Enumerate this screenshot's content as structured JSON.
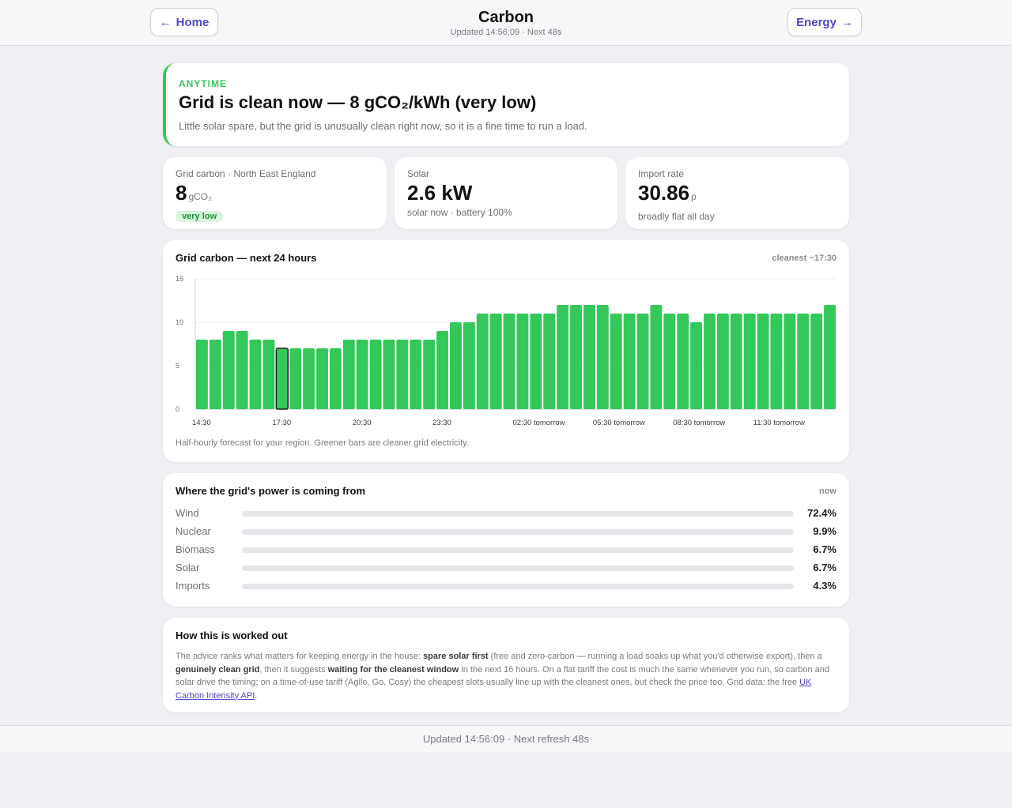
{
  "header": {
    "home_label": "Home",
    "energy_label": "Energy",
    "title": "Carbon",
    "subtitle": "Updated 14:56:09 · Next 48s"
  },
  "hero": {
    "kicker": "ANYTIME",
    "headline": "Grid is clean now — 8 gCO₂/kWh (very low)",
    "text": "Little solar spare, but the grid is unusually clean right now, so it is a fine time to run a load.",
    "accent": "#34c759"
  },
  "stats": {
    "carbon": {
      "label": "Grid carbon · North East England",
      "value": "8",
      "unit": "gCO₂",
      "badge": "very low"
    },
    "solar": {
      "label": "Solar",
      "value": "2.6 kW",
      "sub": "solar now · battery 100%"
    },
    "import": {
      "label": "Import rate",
      "value": "30.86",
      "unit": "p",
      "sub": "broadly flat all day"
    }
  },
  "chart": {
    "title": "Grid carbon — next 24 hours",
    "tag": "cleanest ~17:30",
    "note": "Half-hourly forecast for your region. Greener bars are cleaner grid electricity."
  },
  "chart_data": {
    "type": "bar",
    "bar_color": "#34c759",
    "highlight_index": 6,
    "values": [
      8,
      8,
      9,
      9,
      8,
      8,
      7,
      7,
      7,
      7,
      7,
      8,
      8,
      8,
      8,
      8,
      8,
      8,
      9,
      10,
      10,
      11,
      11,
      11,
      11,
      11,
      11,
      12,
      12,
      12,
      12,
      11,
      11,
      11,
      12,
      11,
      11,
      10,
      11,
      11,
      11,
      11,
      11,
      11,
      11,
      11,
      11,
      12
    ],
    "x_tick_labels": [
      "14:30",
      "17:30",
      "20:30",
      "23:30",
      "02:30 tomorrow",
      "05:30 tomorrow",
      "08:30 tomorrow",
      "11:30 tomorrow"
    ],
    "x_tick_indices": [
      0,
      6,
      12,
      18,
      24,
      30,
      36,
      42
    ],
    "y_ticks": [
      "15",
      "10",
      "5",
      "0"
    ],
    "ylim": [
      0,
      15
    ],
    "grid": true
  },
  "mix": {
    "title": "Where the grid's power is coming from",
    "tag": "now",
    "items": [
      {
        "name": "Wind",
        "pct": "72.4%",
        "fraction": 0.724
      },
      {
        "name": "Nuclear",
        "pct": "9.9%",
        "fraction": 0.099
      },
      {
        "name": "Biomass",
        "pct": "6.7%",
        "fraction": 0.067
      },
      {
        "name": "Solar",
        "pct": "6.7%",
        "fraction": 0.067
      },
      {
        "name": "Imports",
        "pct": "4.3%",
        "fraction": 0.043
      }
    ]
  },
  "how": {
    "title": "How this is worked out",
    "p1": "The advice ranks what matters for keeping energy in the house: ",
    "b1": "spare solar first",
    "p2": " (free and zero-carbon — running a load soaks up what you'd otherwise export), then a ",
    "b2": "genuinely clean grid",
    "p3": ", then it suggests ",
    "b3": "waiting for the cleanest window",
    "p4": " in the next 16 hours. On a flat tariff the cost is much the same whenever you run, so carbon and solar drive the timing; on a time-of-use tariff (Agile, Go, Cosy) the cheapest slots usually line up with the cleanest ones, but check the price too. Grid data: the free ",
    "link": "UK Carbon Intensity API",
    "p5": "."
  },
  "footer": {
    "text": "Updated 14:56:09 · Next refresh 48s"
  }
}
